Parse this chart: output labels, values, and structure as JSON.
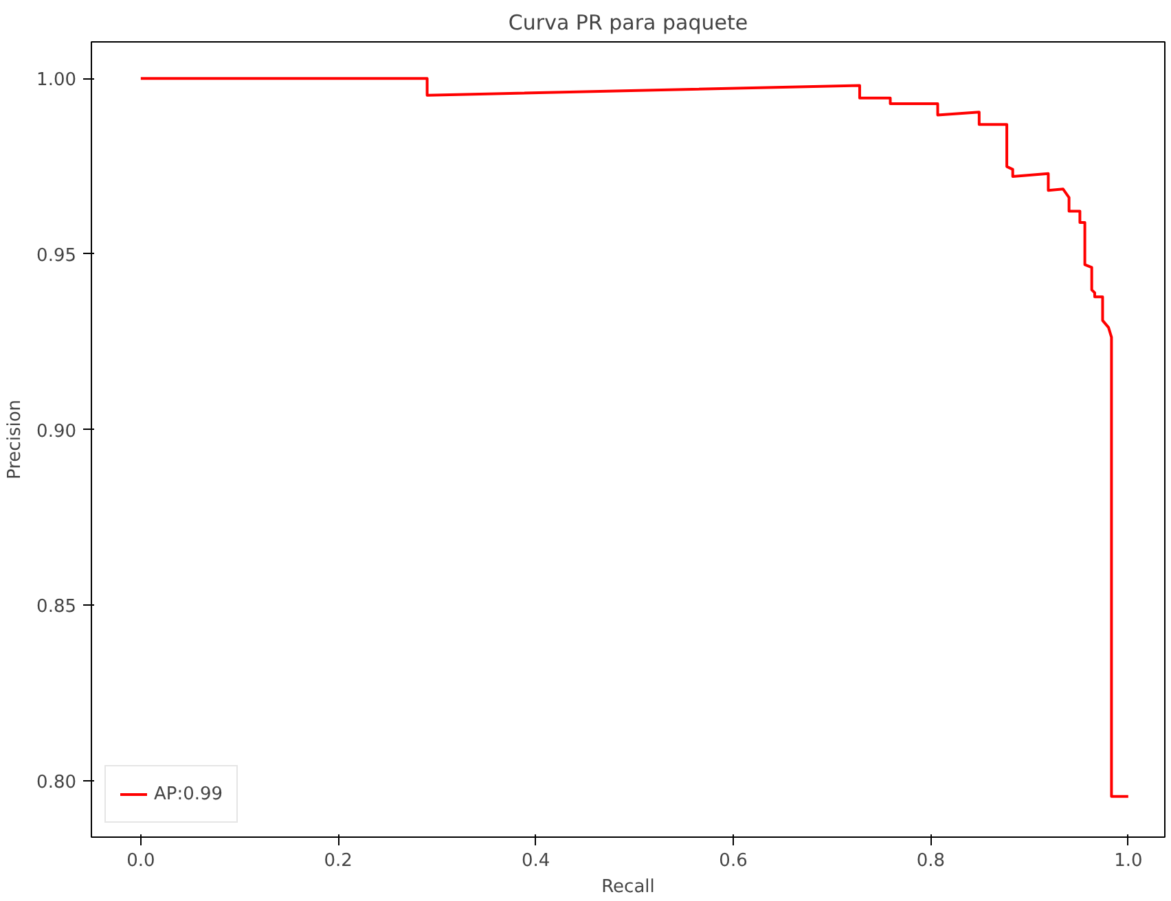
{
  "chart_data": {
    "type": "line",
    "title": "Curva PR para paquete",
    "xlabel": "Recall",
    "ylabel": "Precision",
    "x": [
      0,
      0.29,
      0.29,
      0.728,
      0.728,
      0.759,
      0.759,
      0.807,
      0.807,
      0.849,
      0.849,
      0.877,
      0.877,
      0.883,
      0.883,
      0.919,
      0.919,
      0.934,
      0.94,
      0.94,
      0.951,
      0.951,
      0.956,
      0.956,
      0.963,
      0.963,
      0.966,
      0.966,
      0.974,
      0.974,
      0.98,
      0.983,
      0.983,
      1.0
    ],
    "series": [
      {
        "name": "AP:0.99",
        "color": "#ff0000",
        "values": [
          1.0,
          1.0,
          0.9952,
          0.998,
          0.9944,
          0.9944,
          0.9928,
          0.9928,
          0.9896,
          0.9904,
          0.9869,
          0.9869,
          0.9749,
          0.9741,
          0.9721,
          0.9729,
          0.9681,
          0.9685,
          0.9661,
          0.9622,
          0.9622,
          0.959,
          0.959,
          0.947,
          0.9462,
          0.9398,
          0.939,
          0.9378,
          0.9378,
          0.9311,
          0.9291,
          0.9263,
          0.7956,
          0.7956
        ]
      }
    ],
    "xlim": [
      -0.05,
      1.037
    ],
    "ylim": [
      0.784,
      1.0104
    ],
    "xticks": [
      {
        "value": 0,
        "label": "0.0"
      },
      0.2,
      0.4,
      0.6,
      0.8,
      {
        "value": 1,
        "label": "1.0"
      }
    ],
    "yticks": [
      {
        "value": 0.8,
        "label": "0.80"
      },
      0.85,
      {
        "value": 0.9,
        "label": "0.90"
      },
      0.95,
      {
        "value": 1.0,
        "label": "1.00"
      }
    ],
    "grid": false,
    "legend": "bottom left",
    "marker": "none",
    "line_style": "solid"
  }
}
